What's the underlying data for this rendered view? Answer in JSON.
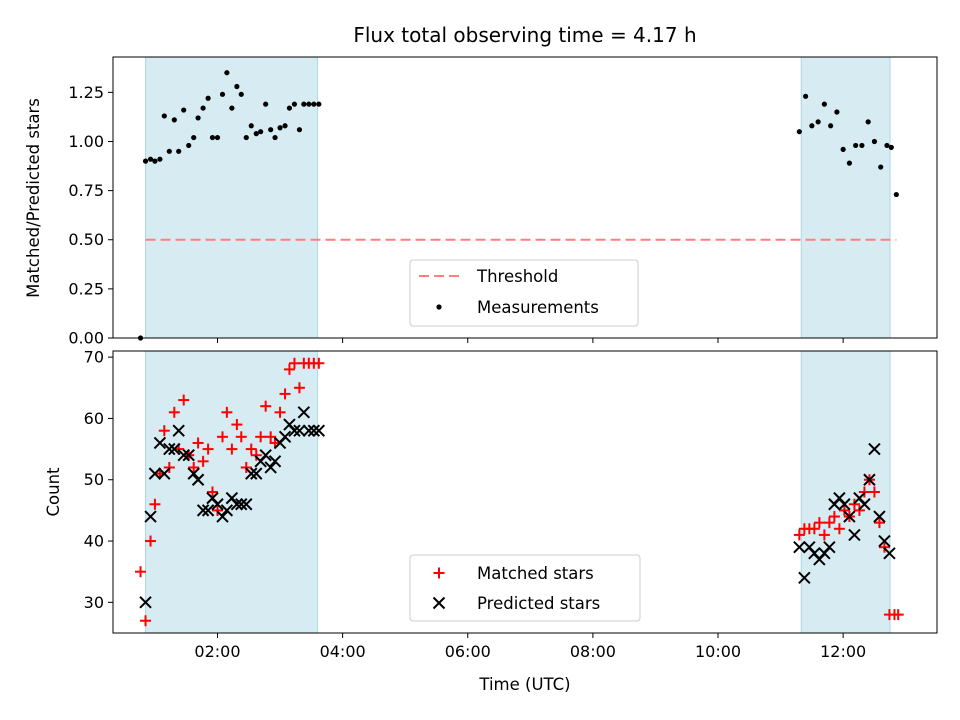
{
  "figure": {
    "title": "Flux total observing time = 4.17 h"
  },
  "colors": {
    "shade": "#add8e6",
    "matched": "#ff0000",
    "predicted": "#000000",
    "measurement": "#000000",
    "threshold": "#ff7f7f"
  },
  "chart_data": [
    {
      "type": "scatter",
      "title": "Flux total observing time = 4.17 h",
      "ylabel": "Matched/Predicted stars",
      "xlabel": "",
      "xlim": [
        0.33,
        13.5
      ],
      "ylim": [
        0,
        1.43
      ],
      "yticks": [
        0,
        0.25,
        0.5,
        0.75,
        1.0,
        1.25
      ],
      "ytick_labels": [
        "0.00",
        "0.25",
        "0.50",
        "0.75",
        "1.00",
        "1.25"
      ],
      "xticks": [
        2,
        4,
        6,
        8,
        10,
        12
      ],
      "shaded_intervals": [
        [
          0.85,
          3.6
        ],
        [
          11.33,
          12.75
        ]
      ],
      "threshold": {
        "name": "Threshold",
        "y": 0.5,
        "x_range": [
          0.85,
          12.85
        ]
      },
      "legend": {
        "location": "lower-center",
        "entries": [
          "Threshold",
          "Measurements"
        ]
      },
      "series": [
        {
          "name": "Measurements",
          "x": [
            0.77,
            0.85,
            0.93,
            1.0,
            1.08,
            1.15,
            1.23,
            1.31,
            1.38,
            1.46,
            1.54,
            1.62,
            1.69,
            1.77,
            1.85,
            1.92,
            2.0,
            2.08,
            2.15,
            2.23,
            2.31,
            2.38,
            2.46,
            2.54,
            2.62,
            2.69,
            2.77,
            2.85,
            2.92,
            3.0,
            3.08,
            3.15,
            3.23,
            3.31,
            3.38,
            3.46,
            3.54,
            3.62,
            11.3,
            11.4,
            11.5,
            11.6,
            11.7,
            11.8,
            11.9,
            12.0,
            12.1,
            12.2,
            12.3,
            12.4,
            12.5,
            12.6,
            12.7,
            12.77,
            12.85
          ],
          "y": [
            0.0,
            0.9,
            0.91,
            0.9,
            0.91,
            1.13,
            0.95,
            1.11,
            0.95,
            1.16,
            0.98,
            1.02,
            1.12,
            1.17,
            1.22,
            1.02,
            1.02,
            1.24,
            1.35,
            1.17,
            1.28,
            1.24,
            1.02,
            1.08,
            1.04,
            1.05,
            1.19,
            1.06,
            1.02,
            1.07,
            1.08,
            1.17,
            1.19,
            1.06,
            1.19,
            1.19,
            1.19,
            1.19,
            1.05,
            1.23,
            1.08,
            1.1,
            1.19,
            1.08,
            1.15,
            0.96,
            0.89,
            0.98,
            0.98,
            1.1,
            1.0,
            0.87,
            0.98,
            0.97,
            0.73
          ]
        }
      ]
    },
    {
      "type": "scatter",
      "title": "",
      "ylabel": "Count",
      "xlabel": "Time (UTC)",
      "xlim": [
        0.33,
        13.5
      ],
      "ylim": [
        25,
        71
      ],
      "yticks": [
        30,
        40,
        50,
        60,
        70
      ],
      "ytick_labels": [
        "30",
        "40",
        "50",
        "60",
        "70"
      ],
      "xticks": [
        2,
        4,
        6,
        8,
        10,
        12
      ],
      "xtick_labels": [
        "02:00",
        "04:00",
        "06:00",
        "08:00",
        "10:00",
        "12:00"
      ],
      "shaded_intervals": [
        [
          0.85,
          3.6
        ],
        [
          11.33,
          12.75
        ]
      ],
      "legend": {
        "location": "lower-center",
        "entries": [
          "Matched stars",
          "Predicted stars"
        ]
      },
      "series": [
        {
          "name": "Matched stars",
          "marker": "plus",
          "x": [
            0.77,
            0.85,
            0.93,
            1.0,
            1.08,
            1.15,
            1.23,
            1.31,
            1.38,
            1.46,
            1.54,
            1.62,
            1.69,
            1.77,
            1.85,
            1.92,
            2.0,
            2.08,
            2.15,
            2.23,
            2.31,
            2.38,
            2.46,
            2.54,
            2.62,
            2.69,
            2.77,
            2.85,
            2.92,
            3.0,
            3.08,
            3.15,
            3.23,
            3.31,
            3.38,
            3.46,
            3.54,
            3.62,
            11.3,
            11.38,
            11.46,
            11.54,
            11.62,
            11.7,
            11.78,
            11.86,
            11.94,
            12.02,
            12.1,
            12.18,
            12.26,
            12.34,
            12.42,
            12.5,
            12.58,
            12.66,
            12.74,
            12.82,
            12.88
          ],
          "y": [
            35,
            27,
            40,
            46,
            51,
            58,
            52,
            61,
            55,
            63,
            54,
            52,
            56,
            53,
            55,
            48,
            45,
            57,
            61,
            55,
            59,
            57,
            52,
            55,
            54,
            57,
            62,
            57,
            56,
            61,
            64,
            68,
            69,
            65,
            69,
            69,
            69,
            69,
            41,
            42,
            42,
            42,
            43,
            41,
            43,
            44,
            42,
            45,
            44,
            46,
            45,
            48,
            50,
            48,
            43,
            39,
            28,
            28,
            28
          ]
        },
        {
          "name": "Predicted stars",
          "marker": "x",
          "x": [
            0.85,
            0.93,
            1.0,
            1.08,
            1.15,
            1.23,
            1.31,
            1.38,
            1.46,
            1.54,
            1.62,
            1.69,
            1.77,
            1.85,
            1.92,
            2.0,
            2.08,
            2.15,
            2.23,
            2.31,
            2.38,
            2.46,
            2.54,
            2.62,
            2.69,
            2.77,
            2.85,
            2.92,
            3.0,
            3.08,
            3.15,
            3.23,
            3.31,
            3.38,
            3.46,
            3.54,
            3.62,
            11.3,
            11.38,
            11.46,
            11.54,
            11.62,
            11.7,
            11.78,
            11.86,
            11.94,
            12.02,
            12.1,
            12.18,
            12.26,
            12.34,
            12.42,
            12.5,
            12.58,
            12.66,
            12.74
          ],
          "y": [
            30,
            44,
            51,
            56,
            51,
            55,
            55,
            58,
            54,
            54,
            51,
            50,
            45,
            45,
            47,
            46,
            44,
            45,
            47,
            46,
            46,
            46,
            51,
            51,
            53,
            54,
            52,
            53,
            56,
            57,
            59,
            58,
            58,
            61,
            58,
            58,
            58,
            39,
            34,
            39,
            38,
            37,
            38,
            39,
            46,
            47,
            46,
            44,
            41,
            47,
            46,
            50,
            55,
            44,
            40,
            38
          ]
        }
      ]
    }
  ]
}
